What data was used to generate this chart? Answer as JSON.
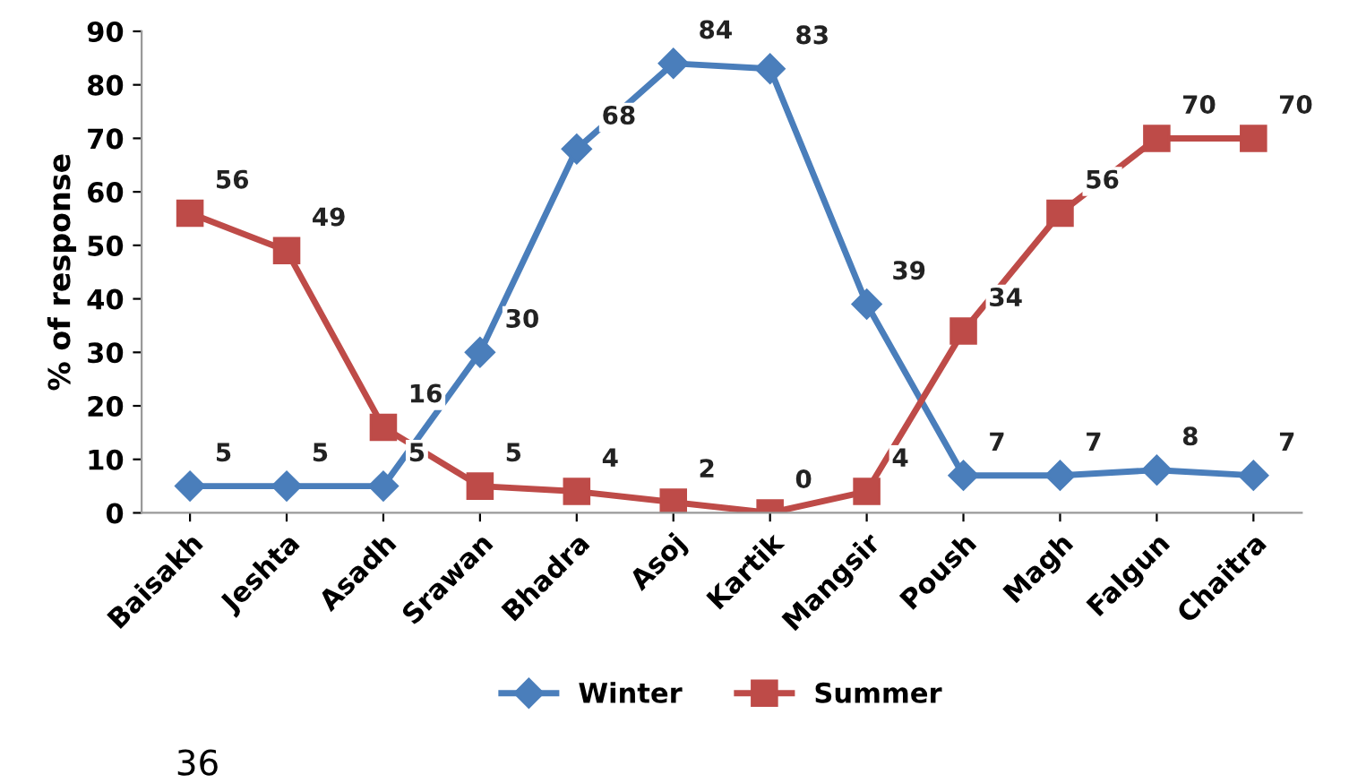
{
  "chart_data": {
    "type": "line",
    "ylabel": "% of response",
    "categories": [
      "Baisakh",
      "Jeshta",
      "Asadh",
      "Srawan",
      "Bhadra",
      "Asoj",
      "Kartik",
      "Mangsir",
      "Poush",
      "Magh",
      "Falgun",
      "Chaitra"
    ],
    "series": [
      {
        "name": "Winter",
        "color": "#4a7ebb",
        "marker": "diamond",
        "values": [
          5,
          5,
          5,
          30,
          68,
          84,
          83,
          39,
          7,
          7,
          8,
          7
        ]
      },
      {
        "name": "Summer",
        "color": "#be4b48",
        "marker": "square",
        "values": [
          56,
          49,
          16,
          5,
          4,
          2,
          0,
          4,
          34,
          56,
          70,
          70
        ]
      }
    ],
    "ylim": [
      0,
      90
    ],
    "yticks": [
      0,
      10,
      20,
      30,
      40,
      50,
      60,
      70,
      80,
      90
    ],
    "grid": false,
    "legend": "bottom",
    "data_labels": true,
    "line_style": "solid",
    "annotations": [
      "36"
    ]
  }
}
